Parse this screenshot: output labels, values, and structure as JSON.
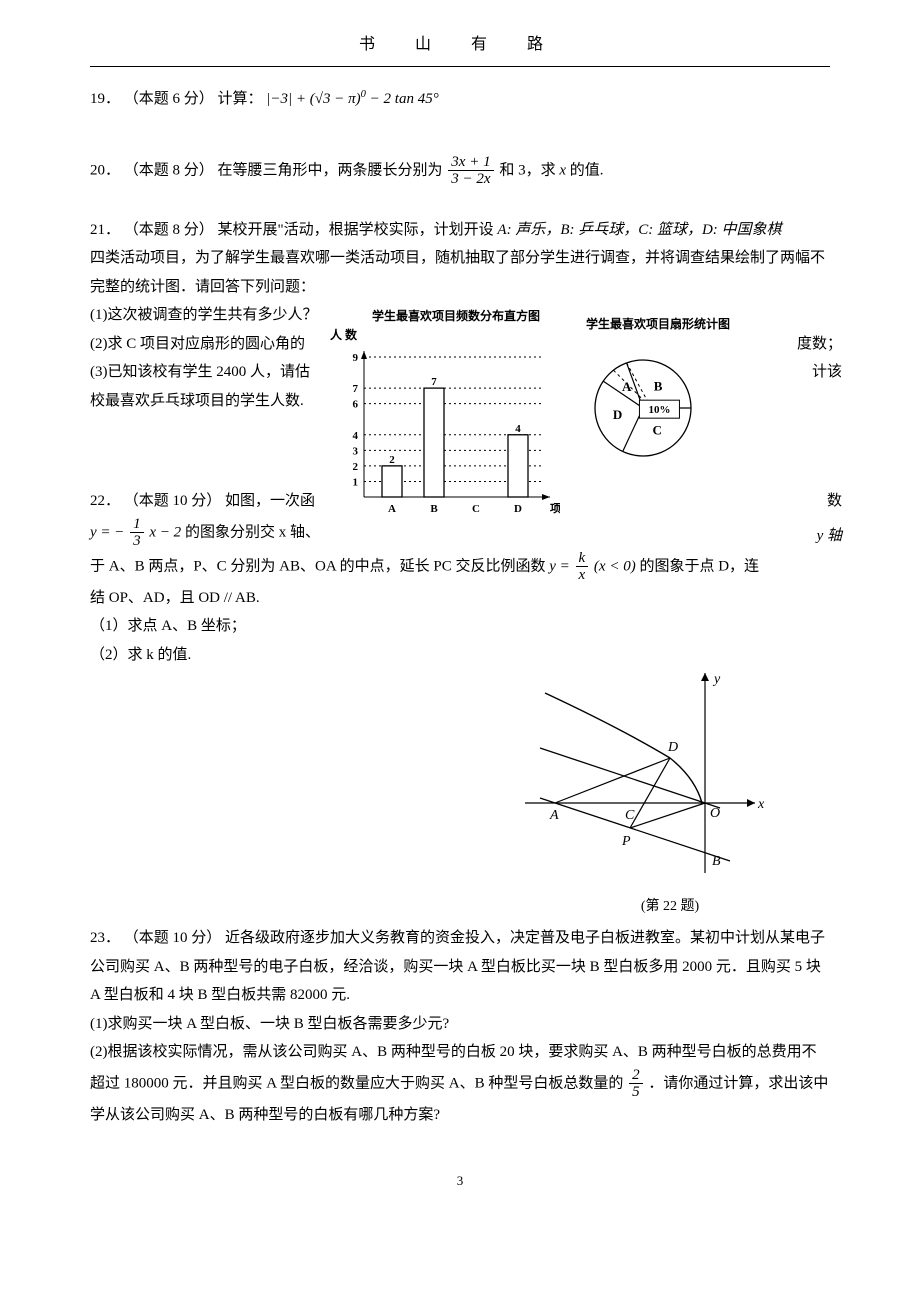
{
  "header": "书 山 有 路",
  "page_number": "3",
  "q19": {
    "num": "19．",
    "points": "（本题 6 分）",
    "label": "计算：",
    "expr_html": "|−3| + (√3 − π)<sup>0</sup> − 2 tan 45°"
  },
  "q20": {
    "num": "20．",
    "points": "（本题 8 分）",
    "text1": "在等腰三角形中，两条腰长分别为",
    "frac_num": "3x + 1",
    "frac_den": "3 − 2x",
    "text2": " 和 3，求 ",
    "var": "x",
    "text3": " 的值."
  },
  "q21": {
    "num": "21．",
    "points": "（本题 8 分）",
    "line1a": "某校开展\"活动，根据学校实际，计划开设 ",
    "cats_inline": "A: 声乐，B: 乒乓球，C: 篮球，D: 中国象棋",
    "line2": "四类活动项目，为了解学生最喜欢哪一类活动项目，随机抽取了部分学生进行调查，并将调查结果绘制了两幅不完整的统计图．请回答下列问题：",
    "sub1": "(1)这次被调查的学生共有多少人？",
    "sub2a": "(2)求 C 项目对应扇形的圆心角的",
    "sub2b": "度数；",
    "sub3a": "(3)已知该校有学生 2400 人，请估",
    "sub3b": "计该",
    "sub3c": "校最喜欢乒乓球项目的学生人数.",
    "bar_title": "学生最喜欢项目频数分布直方图",
    "pie_title": "学生最喜欢项目扇形统计图",
    "y_label": "人     数",
    "x_label": "项目",
    "bar_chart": {
      "type": "bar",
      "categories": [
        "A",
        "B",
        "C",
        "D"
      ],
      "values": [
        2,
        7,
        null,
        4
      ],
      "value_labels": [
        "2",
        "7",
        "",
        "4"
      ],
      "y_ticks": [
        1,
        2,
        3,
        4,
        6,
        7,
        9
      ],
      "bar_color": "#ffffff",
      "border_color": "#000000",
      "grid_style": "dotted"
    },
    "pie_chart": {
      "type": "pie",
      "slices": [
        {
          "label": "B",
          "start": -20,
          "end": 90,
          "color": "#ffffff"
        },
        {
          "label": "C",
          "start": 90,
          "end": 205,
          "color": "#ffffff"
        },
        {
          "label": "D",
          "start": 205,
          "end": 304,
          "color": "#ffffff"
        },
        {
          "label": "A",
          "start": 304,
          "end": 340,
          "color": "#ffffff"
        }
      ],
      "callout_label": "10%",
      "callout_color": "#000000"
    }
  },
  "q22": {
    "num": "22．",
    "points": "（本题 10 分）",
    "line1": "如图，一次函",
    "right1": "数",
    "eq_pre": "y = −",
    "eq_frac_num": "1",
    "eq_frac_den": "3",
    "eq_post": "x − 2",
    "line2": " 的图象分别交 x 轴、",
    "right2": "y 轴",
    "line3a": "于 A、B 两点，P、C 分别为 AB、OA 的中点，延长 PC 交反比例函数 ",
    "eq2_pre": "y = ",
    "eq2_num": "k",
    "eq2_den": "x",
    "eq2_cond": " (x < 0)",
    "line3b": " 的图象于点 D，连",
    "line4": "结 OP、AD，且 OD // AB.",
    "sub1": "（1）求点 A、B 坐标；",
    "sub2": "（2）求 k 的值.",
    "caption": "(第 22 题)",
    "diagram": {
      "labels": [
        "A",
        "C",
        "O",
        "x",
        "y",
        "D",
        "P",
        "B"
      ],
      "line_color": "#000000"
    }
  },
  "q23": {
    "num": "23．",
    "points": "（本题 10 分）",
    "line1": "近各级政府逐步加大义务教育的资金投入，决定普及电子白板进教室。某初中计划从某电子公司购买 A、B 两种型号的电子白板，经洽谈，购买一块 A 型白板比买一块 B 型白板多用 2000 元．且购买 5 块 A 型白板和 4 块 B 型白板共需 82000 元.",
    "sub1": "(1)求购买一块 A 型白板、一块 B 型白板各需要多少元?",
    "sub2a": "(2)根据该校实际情况，需从该公司购买 A、B 两种型号的白板 20 块，要求购买 A、B 两种型号白板的总费用不超过 180000 元．并且购买 A 型白板的数量应大于购买 A、B 种型号白板总数量的",
    "frac_num": "2",
    "frac_den": "5",
    "sub2b": "．请你通过计算，求出该中学从该公司购买 A、B 两种型号的白板有哪几种方案?"
  }
}
